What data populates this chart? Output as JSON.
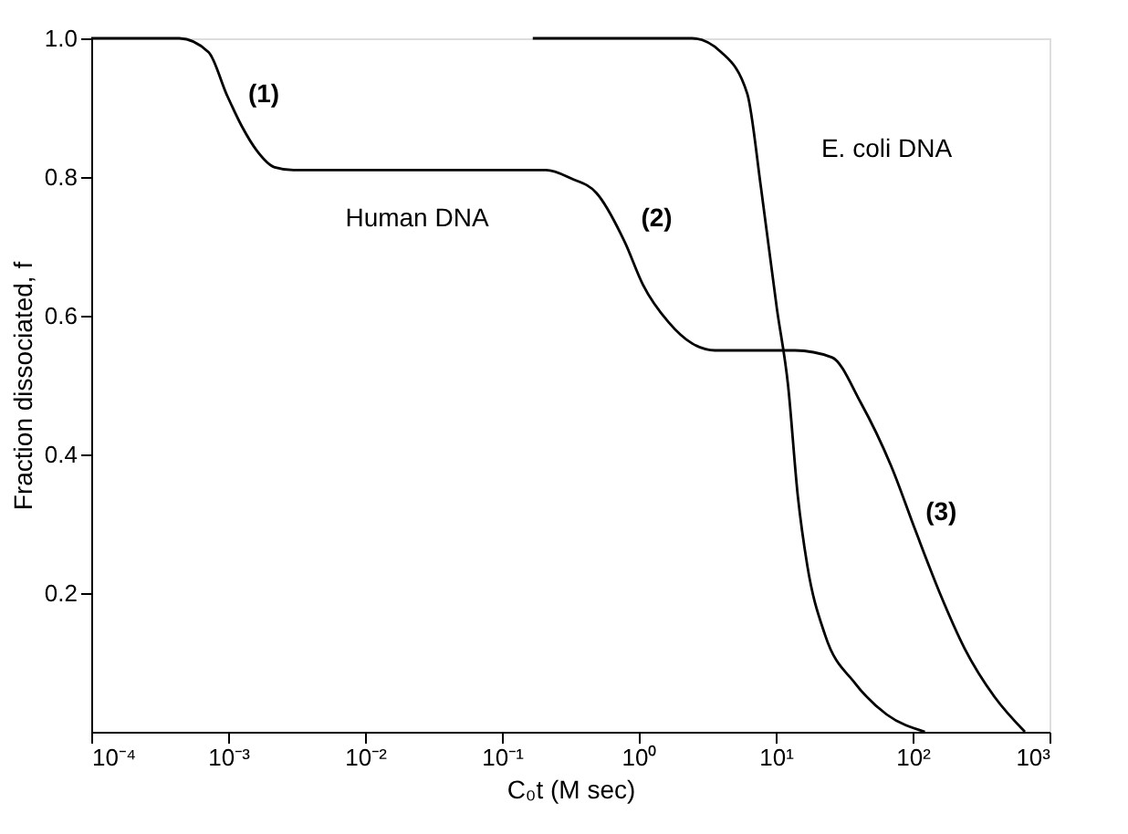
{
  "chart_data": {
    "type": "line",
    "xlabel": "C₀t (M sec)",
    "ylabel": "Fraction dissociated, f",
    "log": "x",
    "grid": false,
    "legend": false,
    "marker": "none",
    "line_style": "solid",
    "xlim": [
      0.0001,
      1000
    ],
    "xticks": [
      {
        "value": 0.0001,
        "label": "10⁻⁴"
      },
      {
        "value": 0.001,
        "label": "10⁻³"
      },
      {
        "value": 0.01,
        "label": "10⁻²"
      },
      {
        "value": 0.1,
        "label": "10⁻¹"
      },
      {
        "value": 1,
        "label": "10⁰"
      },
      {
        "value": 10,
        "label": "10¹"
      },
      {
        "value": 100,
        "label": "10²"
      },
      {
        "value": 1000,
        "label": "10³"
      }
    ],
    "ylim": [
      0,
      1
    ],
    "yticks": [
      0.2,
      0.4,
      0.6,
      0.8,
      {
        "value": 1,
        "label": "1.0"
      }
    ],
    "series": [
      {
        "name": "Human DNA",
        "color": "#000000",
        "x": [
          0.0001,
          0.00025,
          0.00044,
          0.00072,
          0.00098,
          0.00126,
          0.00162,
          0.00219,
          0.003,
          0.21,
          0.32,
          0.49,
          0.79,
          1.07,
          1.66,
          2.45,
          3.6,
          13.8,
          25.7,
          41.7,
          70.8,
          105,
          158,
          240,
          398,
          661
        ],
        "values": [
          1.0,
          1.0,
          1.0,
          0.98,
          0.918,
          0.873,
          0.838,
          0.814,
          0.81,
          0.81,
          0.798,
          0.777,
          0.706,
          0.645,
          0.59,
          0.56,
          0.55,
          0.55,
          0.54,
          0.475,
          0.38,
          0.29,
          0.2,
          0.12,
          0.05,
          0
        ]
      },
      {
        "name": "E. coli DNA",
        "color": "#000000",
        "x": [
          0.168,
          2.45,
          4.0,
          6.2,
          7.8,
          10.2,
          12.3,
          14.5,
          17,
          22.9,
          38,
          64.6,
          123
        ],
        "values": [
          1.0,
          1.0,
          0.98,
          0.92,
          0.785,
          0.61,
          0.5,
          0.34,
          0.24,
          0.14,
          0.07,
          0.025,
          0
        ]
      }
    ],
    "annotations": [
      "(1)",
      "(2)",
      "(3)"
    ]
  }
}
